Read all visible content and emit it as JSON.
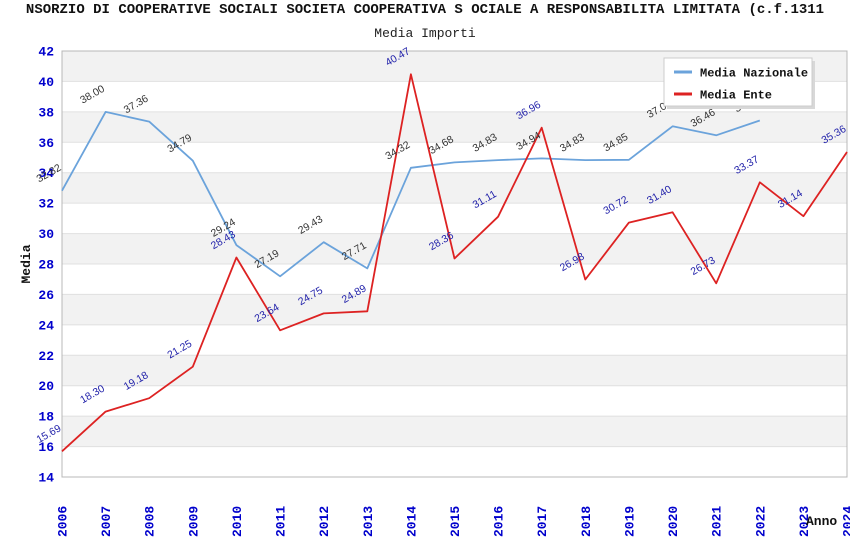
{
  "header": {
    "title": "NSORZIO DI COOPERATIVE SOCIALI SOCIETA COOPERATIVA S OCIALE A RESPONSABILITA LIMITATA (c.f.1311",
    "subtitle": "Media Importi"
  },
  "chart_data": {
    "type": "line",
    "title": "Media Importi",
    "xlabel": "Anno",
    "ylabel": "Media",
    "ylim": [
      14,
      42
    ],
    "ytick_step": 2,
    "grid": "horizontal-alternating-bands",
    "legend_position": "top-right",
    "categories": [
      "2006",
      "2007",
      "2008",
      "2009",
      "2010",
      "2011",
      "2012",
      "2013",
      "2014",
      "2015",
      "2016",
      "2017",
      "2018",
      "2019",
      "2020",
      "2021",
      "2022",
      "2023",
      "2024"
    ],
    "series": [
      {
        "name": "Media Nazionale",
        "color": "#6BA3DB",
        "label_color": "#333333",
        "values": [
          32.82,
          38.0,
          37.36,
          34.79,
          29.24,
          27.19,
          29.43,
          27.71,
          34.32,
          34.68,
          34.83,
          34.94,
          34.83,
          34.85,
          37.05,
          36.46,
          37.43,
          null,
          null
        ]
      },
      {
        "name": "Media Ente",
        "color": "#DD2222",
        "label_color": "#2222AA",
        "values": [
          15.69,
          18.3,
          19.18,
          21.25,
          28.43,
          23.64,
          24.75,
          24.89,
          40.47,
          28.36,
          31.11,
          36.96,
          26.98,
          30.72,
          31.4,
          26.73,
          33.37,
          31.14,
          35.36
        ]
      }
    ]
  },
  "colors": {
    "axis_tick_label": "#0000CC",
    "axis_title": "#111111",
    "plot_border": "#B8B8B8",
    "band_gray": "#F2F2F2",
    "band_white": "#FFFFFF",
    "grid_line": "#E0E0E0",
    "legend_bg": "#FFFFFF",
    "legend_border": "#CCCCCC",
    "legend_shadow": "#D8D8D8",
    "legend_text": "#111111"
  }
}
